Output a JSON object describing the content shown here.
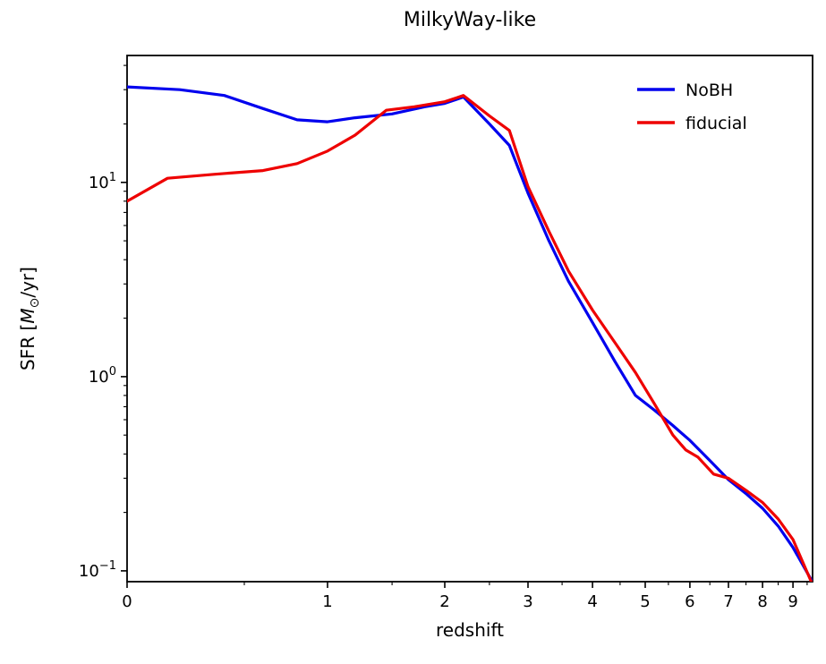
{
  "figure": {
    "background": "#ffffff",
    "axis_color": "#000000"
  },
  "chart_data": {
    "type": "line",
    "title": "MilkyWay-like",
    "xlabel": "redshift",
    "ylabel": "SFR [M⊙/yr]",
    "ylabel_rich": [
      {
        "text": "SFR [",
        "style": "normal"
      },
      {
        "text": "M",
        "style": "italic"
      },
      {
        "text": "⊙",
        "style": "sub"
      },
      {
        "text": "/yr]",
        "style": "normal"
      }
    ],
    "x_scale": "log(1+z)",
    "y_scale": "log",
    "xlim": [
      0,
      9.7
    ],
    "ylim": [
      0.088,
      45
    ],
    "x_ticks": [
      0,
      1,
      2,
      3,
      4,
      5,
      6,
      7,
      8,
      9
    ],
    "y_ticks": [
      {
        "value": 10,
        "base": "10",
        "exp": "1"
      },
      {
        "value": 1,
        "base": "10",
        "exp": "0"
      },
      {
        "value": 0.1,
        "base": "10",
        "exp": "−1"
      }
    ],
    "grid": false,
    "legend": {
      "position": "upper right",
      "frame": false
    },
    "series": [
      {
        "name": "NoBH",
        "color": "#0000ee",
        "x": [
          0,
          0.2,
          0.4,
          0.6,
          0.8,
          1.0,
          1.2,
          1.5,
          1.8,
          2.0,
          2.2,
          2.5,
          2.75,
          3.0,
          3.3,
          3.6,
          4.0,
          4.4,
          4.8,
          5.2,
          5.6,
          6.0,
          6.5,
          7.0,
          7.5,
          8.0,
          8.5,
          9.0,
          9.65
        ],
        "y": [
          31,
          30,
          28,
          24,
          21,
          20.5,
          21.5,
          22.5,
          24.5,
          25.5,
          27.5,
          20,
          15.5,
          8.8,
          5.0,
          3.1,
          1.9,
          1.2,
          0.8,
          0.67,
          0.56,
          0.47,
          0.37,
          0.295,
          0.25,
          0.21,
          0.17,
          0.132,
          0.09
        ]
      },
      {
        "name": "fiducial",
        "color": "#ee0000",
        "x": [
          0,
          0.15,
          0.35,
          0.6,
          0.8,
          1.0,
          1.2,
          1.45,
          1.7,
          2.0,
          2.2,
          2.5,
          2.75,
          3.0,
          3.3,
          3.6,
          4.0,
          4.4,
          4.8,
          5.2,
          5.6,
          5.9,
          6.2,
          6.6,
          7.0,
          7.5,
          8.0,
          8.5,
          9.0,
          9.65
        ],
        "y": [
          8.0,
          10.5,
          11.0,
          11.5,
          12.5,
          14.5,
          17.5,
          23.5,
          24.5,
          26,
          28,
          22,
          18.5,
          9.5,
          5.6,
          3.5,
          2.2,
          1.5,
          1.05,
          0.72,
          0.5,
          0.42,
          0.385,
          0.315,
          0.3,
          0.26,
          0.225,
          0.185,
          0.145,
          0.088
        ]
      }
    ]
  }
}
